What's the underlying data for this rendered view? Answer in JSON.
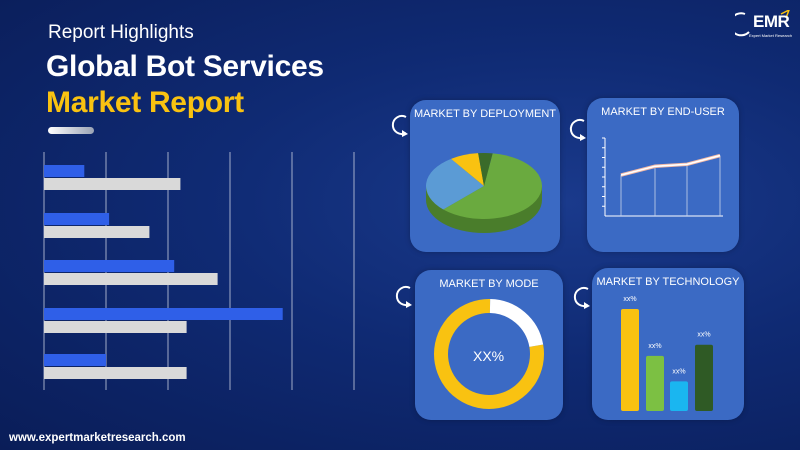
{
  "header": {
    "subtitle": "Report Highlights",
    "title_line1": "Global Bot Services",
    "title_line2": "Market Report"
  },
  "logo": {
    "text": "EMR",
    "tagline": "Expert Market Research"
  },
  "footer": {
    "url": "www.expertmarketresearch.com"
  },
  "colors": {
    "accent": "#f9c211",
    "blue_bar": "#2f5fe8",
    "gray_bar": "#d9d9d9",
    "card": "#3b6ac4"
  },
  "cards": {
    "deployment": {
      "title": "MARKET BY DEPLOYMENT"
    },
    "end_user": {
      "title": "MARKET BY END-USER"
    },
    "mode": {
      "title": "MARKET BY MODE",
      "center_label": "XX%"
    },
    "technology": {
      "title": "MARKET BY TECHNOLOGY",
      "bar_labels": [
        "xx%",
        "xx%",
        "xx%",
        "xx%"
      ]
    }
  },
  "chart_data": [
    {
      "type": "bar",
      "orientation": "horizontal",
      "series": [
        {
          "values": [
            0.13,
            0.21,
            0.42,
            0.77,
            0.2
          ]
        },
        {
          "values": [
            0.44,
            0.34,
            0.56,
            0.46,
            0.46
          ]
        }
      ],
      "grid": true
    },
    {
      "type": "pie",
      "values": [
        60,
        28,
        8,
        4
      ],
      "colors": [
        "#6aaa3f",
        "#5b9bd5",
        "#f9c211",
        "#3a6b2a"
      ]
    },
    {
      "type": "line",
      "values": [
        42,
        51,
        53,
        62
      ],
      "grid": true
    },
    {
      "type": "pie",
      "values": [
        78,
        22
      ],
      "colors": [
        "#f9c211",
        "#ffffff"
      ]
    },
    {
      "type": "bar",
      "values": [
        100,
        54,
        29,
        65
      ],
      "colors": [
        "#f9c211",
        "#7cc043",
        "#1ab6f0",
        "#2f5a25"
      ]
    }
  ]
}
